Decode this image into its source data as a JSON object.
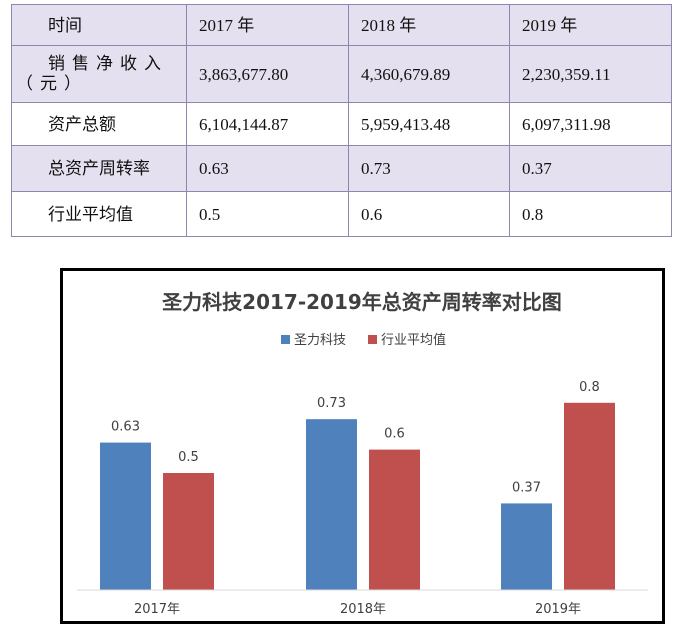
{
  "table": {
    "header": [
      "时间",
      "2017 年",
      "2018 年",
      "2019 年"
    ],
    "rows": [
      {
        "label_line1": "销售净收入",
        "label_line2": "（元）",
        "values": [
          "3,863,677.80",
          "4,360,679.89",
          "2,230,359.11"
        ]
      },
      {
        "label": "资产总额",
        "values": [
          "6,104,144.87",
          "5,959,413.48",
          "6,097,311.98"
        ]
      },
      {
        "label": "总资产周转率",
        "values": [
          "0.63",
          "0.73",
          "0.37"
        ]
      },
      {
        "label": "行业平均值",
        "values": [
          "0.5",
          "0.6",
          "0.8"
        ]
      }
    ]
  },
  "chart_data": {
    "type": "bar",
    "title": "圣力科技2017-2019年总资产周转率对比图",
    "categories": [
      "2017年",
      "2018年",
      "2019年"
    ],
    "series": [
      {
        "name": "圣力科技",
        "values": [
          0.63,
          0.73,
          0.37
        ],
        "labels": [
          "0.63",
          "0.73",
          "0.37"
        ],
        "color": "#4f81bd"
      },
      {
        "name": "行业平均值",
        "values": [
          0.5,
          0.6,
          0.8
        ],
        "labels": [
          "0.5",
          "0.6",
          "0.8"
        ],
        "color": "#c0504d"
      }
    ],
    "ylim": [
      0,
      1.0
    ],
    "grid": false,
    "legend": "top-center"
  }
}
